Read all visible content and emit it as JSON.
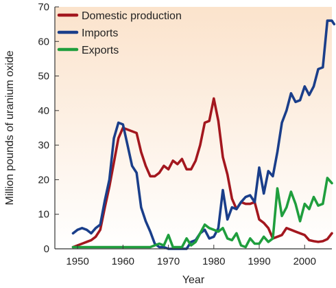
{
  "chart_data": {
    "type": "line",
    "title": "",
    "xlabel": "Year",
    "ylabel": "Million pounds of uranium oxide",
    "xlim": [
      1945,
      2006
    ],
    "ylim": [
      0,
      70
    ],
    "xticks": [
      1950,
      1960,
      1970,
      1980,
      1990,
      2000
    ],
    "yticks": [
      0,
      10,
      20,
      30,
      40,
      50,
      60,
      70
    ],
    "grid": false,
    "legend": "top-left",
    "background_gradient": [
      "#fbe3cc",
      "#ffffff"
    ],
    "series": [
      {
        "name": "Domestic production",
        "color": "#a3171e",
        "points": [
          [
            1949,
            0.5
          ],
          [
            1950,
            1
          ],
          [
            1951,
            1.5
          ],
          [
            1952,
            2
          ],
          [
            1953,
            2.5
          ],
          [
            1954,
            3.5
          ],
          [
            1955,
            5.5
          ],
          [
            1956,
            12
          ],
          [
            1957,
            18
          ],
          [
            1958,
            25
          ],
          [
            1959,
            32
          ],
          [
            1960,
            35
          ],
          [
            1961,
            34.5
          ],
          [
            1962,
            34
          ],
          [
            1963,
            33.5
          ],
          [
            1964,
            28
          ],
          [
            1965,
            24
          ],
          [
            1966,
            21
          ],
          [
            1967,
            21
          ],
          [
            1968,
            22
          ],
          [
            1969,
            24
          ],
          [
            1970,
            23
          ],
          [
            1971,
            25.5
          ],
          [
            1972,
            24.5
          ],
          [
            1973,
            26
          ],
          [
            1974,
            23
          ],
          [
            1975,
            23
          ],
          [
            1976,
            25.5
          ],
          [
            1977,
            30
          ],
          [
            1978,
            36.5
          ],
          [
            1979,
            37
          ],
          [
            1980,
            43.5
          ],
          [
            1981,
            37
          ],
          [
            1982,
            26.5
          ],
          [
            1983,
            21.5
          ],
          [
            1984,
            14.5
          ],
          [
            1985,
            11.5
          ],
          [
            1986,
            13.5
          ],
          [
            1987,
            13
          ],
          [
            1988,
            13
          ],
          [
            1989,
            13.5
          ],
          [
            1990,
            8.5
          ],
          [
            1991,
            7.5
          ],
          [
            1992,
            6
          ],
          [
            1993,
            3
          ],
          [
            1994,
            3.5
          ],
          [
            1995,
            4
          ],
          [
            1996,
            6
          ],
          [
            1997,
            5.5
          ],
          [
            1998,
            5
          ],
          [
            1999,
            4.5
          ],
          [
            2000,
            4
          ],
          [
            2001,
            2.5
          ],
          [
            2002,
            2.2
          ],
          [
            2003,
            2
          ],
          [
            2004,
            2.2
          ],
          [
            2005,
            2.8
          ],
          [
            2006,
            4.5
          ]
        ]
      },
      {
        "name": "Imports",
        "color": "#1a3e8a",
        "points": [
          [
            1949,
            4.5
          ],
          [
            1950,
            5.5
          ],
          [
            1951,
            6
          ],
          [
            1952,
            5.5
          ],
          [
            1953,
            4.5
          ],
          [
            1954,
            6
          ],
          [
            1955,
            7
          ],
          [
            1956,
            14
          ],
          [
            1957,
            20
          ],
          [
            1958,
            32
          ],
          [
            1959,
            36.5
          ],
          [
            1960,
            36
          ],
          [
            1961,
            30
          ],
          [
            1962,
            24
          ],
          [
            1963,
            22
          ],
          [
            1964,
            12
          ],
          [
            1965,
            8
          ],
          [
            1966,
            5
          ],
          [
            1967,
            1.5
          ],
          [
            1968,
            0.5
          ],
          [
            1969,
            0.5
          ],
          [
            1970,
            0
          ],
          [
            1971,
            0
          ],
          [
            1972,
            0
          ],
          [
            1973,
            0
          ],
          [
            1974,
            0
          ],
          [
            1975,
            2
          ],
          [
            1976,
            2.5
          ],
          [
            1977,
            4.5
          ],
          [
            1978,
            5.5
          ],
          [
            1979,
            3
          ],
          [
            1980,
            3.5
          ],
          [
            1981,
            6
          ],
          [
            1982,
            17
          ],
          [
            1983,
            8.5
          ],
          [
            1984,
            12
          ],
          [
            1985,
            11.5
          ],
          [
            1986,
            13.5
          ],
          [
            1987,
            15
          ],
          [
            1988,
            15.5
          ],
          [
            1989,
            13.5
          ],
          [
            1990,
            23.5
          ],
          [
            1991,
            16
          ],
          [
            1992,
            22.5
          ],
          [
            1993,
            21
          ],
          [
            1994,
            28
          ],
          [
            1995,
            36.5
          ],
          [
            1996,
            40
          ],
          [
            1997,
            45
          ],
          [
            1998,
            42.5
          ],
          [
            1999,
            43
          ],
          [
            2000,
            47
          ],
          [
            2001,
            44.5
          ],
          [
            2002,
            47
          ],
          [
            2003,
            52
          ],
          [
            2004,
            52.5
          ],
          [
            2005,
            66
          ],
          [
            2006,
            66
          ],
          [
            2006.5,
            65
          ]
        ]
      },
      {
        "name": "Exports",
        "color": "#1f9e3d",
        "points": [
          [
            1949,
            0.5
          ],
          [
            1955,
            0.5
          ],
          [
            1960,
            0.5
          ],
          [
            1966,
            0.5
          ],
          [
            1967,
            1
          ],
          [
            1968,
            1.5
          ],
          [
            1969,
            1
          ],
          [
            1970,
            4
          ],
          [
            1971,
            0.5
          ],
          [
            1972,
            0.5
          ],
          [
            1973,
            0.5
          ],
          [
            1974,
            3
          ],
          [
            1975,
            1
          ],
          [
            1976,
            2
          ],
          [
            1977,
            4.5
          ],
          [
            1978,
            7
          ],
          [
            1979,
            6
          ],
          [
            1980,
            5.5
          ],
          [
            1981,
            5
          ],
          [
            1982,
            6
          ],
          [
            1983,
            3
          ],
          [
            1984,
            2.5
          ],
          [
            1985,
            4.5
          ],
          [
            1986,
            1
          ],
          [
            1987,
            0.5
          ],
          [
            1988,
            3
          ],
          [
            1989,
            1.5
          ],
          [
            1990,
            1.5
          ],
          [
            1991,
            3.5
          ],
          [
            1992,
            2
          ],
          [
            1993,
            3
          ],
          [
            1994,
            17.5
          ],
          [
            1995,
            9.5
          ],
          [
            1996,
            12
          ],
          [
            1997,
            16.5
          ],
          [
            1998,
            13
          ],
          [
            1999,
            8
          ],
          [
            2000,
            13
          ],
          [
            2001,
            11.5
          ],
          [
            2002,
            15
          ],
          [
            2003,
            12.5
          ],
          [
            2004,
            13
          ],
          [
            2005,
            20.5
          ],
          [
            2006,
            19
          ]
        ]
      }
    ]
  }
}
